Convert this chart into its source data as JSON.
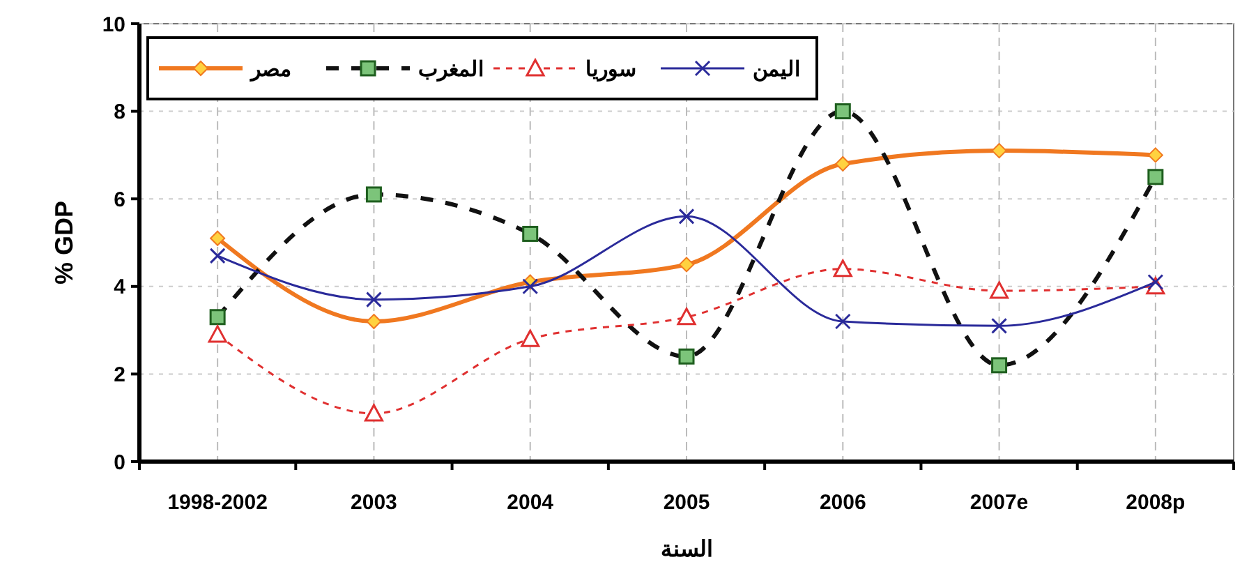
{
  "chart_data": {
    "type": "line",
    "xlabel": "السنة",
    "ylabel": "% GDP",
    "categories": [
      "1998-2002",
      "2003",
      "2004",
      "2005",
      "2006",
      "2007e",
      "2008p"
    ],
    "ylim": [
      0,
      10
    ],
    "yticks": [
      0,
      2,
      4,
      6,
      8,
      10
    ],
    "grid": true,
    "legend": "top left",
    "series": [
      {
        "name": "مصر",
        "color": "#f07820",
        "marker": "diamond",
        "line_style": "solid",
        "values": [
          5.1,
          3.2,
          4.1,
          4.5,
          6.8,
          7.1,
          7.0
        ]
      },
      {
        "name": "المغرب",
        "color": "#111111",
        "marker": "square",
        "line_style": "dashed",
        "values": [
          3.3,
          6.1,
          5.2,
          2.4,
          8.0,
          2.2,
          6.5
        ]
      },
      {
        "name": "سوريا",
        "color": "#e03030",
        "marker": "triangle",
        "line_style": "dashed",
        "values": [
          2.9,
          1.1,
          2.8,
          3.3,
          4.4,
          3.9,
          4.0
        ]
      },
      {
        "name": "اليمن",
        "color": "#2a2a9a",
        "marker": "cross",
        "line_style": "solid",
        "values": [
          4.7,
          3.7,
          4.0,
          5.6,
          3.2,
          3.1,
          4.1
        ]
      }
    ]
  }
}
